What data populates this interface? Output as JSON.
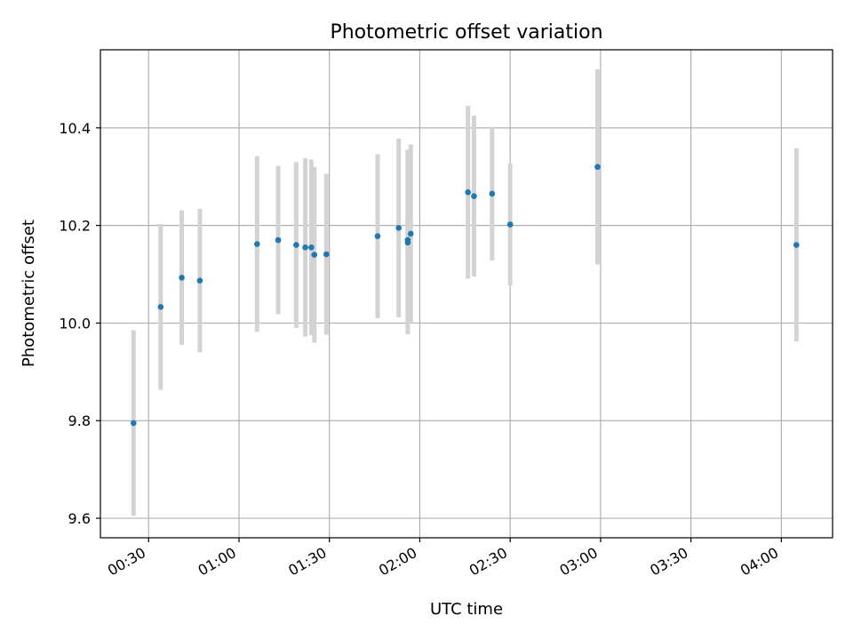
{
  "chart_data": {
    "type": "scatter",
    "title": "Photometric offset variation",
    "xlabel": "UTC time",
    "ylabel": "Photometric offset",
    "x_unit": "HH:MM",
    "xlim": [
      "00:14",
      "04:17"
    ],
    "ylim": [
      9.56,
      10.56
    ],
    "x_ticks": [
      "00:30",
      "01:00",
      "01:30",
      "02:00",
      "02:30",
      "03:00",
      "03:30",
      "04:00"
    ],
    "y_ticks": [
      "9.6",
      "9.8",
      "10.0",
      "10.2",
      "10.4"
    ],
    "grid": true,
    "colors": {
      "marker": "#1f77b4",
      "errorbar": "#d3d3d3",
      "grid": "#b0b0b0",
      "axes": "#000000"
    },
    "points": [
      {
        "x": "00:25",
        "y": 9.795,
        "err": 0.19
      },
      {
        "x": "00:34",
        "y": 10.033,
        "err": 0.17
      },
      {
        "x": "00:41",
        "y": 10.093,
        "err": 0.138
      },
      {
        "x": "00:47",
        "y": 10.087,
        "err": 0.147
      },
      {
        "x": "01:06",
        "y": 10.162,
        "err": 0.18
      },
      {
        "x": "01:13",
        "y": 10.17,
        "err": 0.152
      },
      {
        "x": "01:19",
        "y": 10.16,
        "err": 0.17
      },
      {
        "x": "01:22",
        "y": 10.155,
        "err": 0.183
      },
      {
        "x": "01:24",
        "y": 10.155,
        "err": 0.18
      },
      {
        "x": "01:25",
        "y": 10.14,
        "err": 0.18
      },
      {
        "x": "01:29",
        "y": 10.141,
        "err": 0.165
      },
      {
        "x": "01:46",
        "y": 10.178,
        "err": 0.168
      },
      {
        "x": "01:53",
        "y": 10.195,
        "err": 0.183
      },
      {
        "x": "01:56",
        "y": 10.17,
        "err": 0.185
      },
      {
        "x": "01:56",
        "y": 10.165,
        "err": 0.188
      },
      {
        "x": "01:57",
        "y": 10.183,
        "err": 0.183
      },
      {
        "x": "02:16",
        "y": 10.268,
        "err": 0.177
      },
      {
        "x": "02:18",
        "y": 10.26,
        "err": 0.165
      },
      {
        "x": "02:24",
        "y": 10.265,
        "err": 0.137
      },
      {
        "x": "02:30",
        "y": 10.202,
        "err": 0.125
      },
      {
        "x": "02:59",
        "y": 10.32,
        "err": 0.2
      },
      {
        "x": "04:05",
        "y": 10.16,
        "err": 0.198
      }
    ]
  }
}
